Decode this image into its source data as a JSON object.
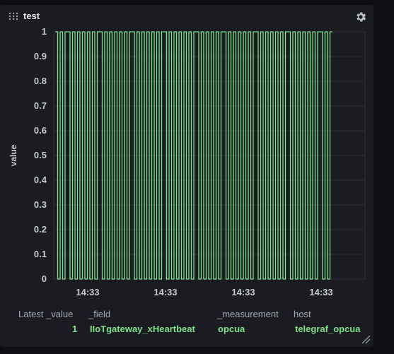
{
  "panel": {
    "title": "test"
  },
  "icons": {
    "drag": "drag-handle-icon",
    "settings": "gear-icon",
    "resize": "resize-handle-icon"
  },
  "colors": {
    "series": "#7ee28b",
    "panel_bg": "#1b1b22",
    "page_bg": "#0e0e13",
    "grid": "#2c2e36"
  },
  "chart_data": {
    "type": "line",
    "ylabel": "value",
    "xlabel": "",
    "ylim": [
      0,
      1
    ],
    "y_ticks": [
      "0",
      "0.1",
      "0.2",
      "0.3",
      "0.4",
      "0.5",
      "0.6",
      "0.7",
      "0.8",
      "0.9",
      "1"
    ],
    "x_ticks": [
      "14:33",
      "14:33",
      "14:33",
      "14:33"
    ],
    "grid": true,
    "series": [
      {
        "values": [
          1,
          0,
          1,
          0,
          1,
          1,
          0,
          1,
          0,
          1,
          0,
          1,
          0,
          1,
          0,
          1,
          0,
          1,
          1,
          0,
          1,
          0,
          1,
          0,
          1,
          0,
          1,
          0,
          1,
          0,
          1,
          1,
          0,
          1,
          0,
          1,
          0,
          1,
          0,
          1,
          0,
          1,
          0,
          1,
          1,
          0,
          1,
          0,
          1,
          0,
          1,
          0,
          1,
          0,
          1,
          0,
          1,
          1,
          0,
          1,
          0,
          1,
          0,
          1,
          0,
          1,
          0,
          1,
          1,
          0,
          1,
          0,
          1,
          0,
          1,
          0,
          1,
          0,
          1,
          0,
          1,
          1,
          0,
          1,
          0,
          1,
          0,
          1,
          0,
          1,
          0,
          1,
          0,
          1,
          1,
          0,
          1,
          0,
          1,
          0,
          1,
          0,
          1,
          0,
          1,
          0,
          1,
          1,
          0,
          1,
          0,
          1
        ]
      }
    ]
  },
  "table": {
    "columns": [
      "Latest _value",
      "_field",
      "_measurement",
      "host"
    ],
    "row": [
      "1",
      "IIoTgateway_xHeartbeat",
      "opcua",
      "telegraf_opcua"
    ]
  }
}
